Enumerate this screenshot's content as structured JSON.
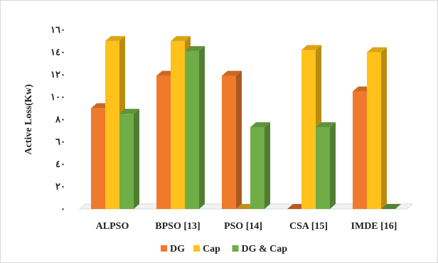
{
  "chart_data": {
    "type": "bar",
    "title": "",
    "xlabel": "",
    "ylabel": "Active Loss(Kw)",
    "ylim": [
      0,
      160
    ],
    "yticks": [
      0,
      20,
      40,
      60,
      80,
      100,
      120,
      140,
      160
    ],
    "ytick_labels": [
      "٠",
      "٢٠",
      "٤٠",
      "٦٠",
      "٨٠",
      "١٠٠",
      "١٢٠",
      "١٤٠",
      "١٦٠"
    ],
    "categories": [
      "ALPSO",
      "BPSO [13]",
      "PSO [14]",
      "CSA [15]",
      "IMDE [16]"
    ],
    "series": [
      {
        "name": "DG",
        "values": [
          90,
          119,
          119,
          0,
          105
        ],
        "color": "#f07a2c"
      },
      {
        "name": "Cap",
        "values": [
          150,
          150,
          0,
          142,
          140
        ],
        "color": "#ffc21a"
      },
      {
        "name": "DG & Cap",
        "values": [
          85,
          141,
          73,
          73,
          0
        ],
        "color": "#70ad47"
      }
    ],
    "grid": false,
    "legend_position": "bottom",
    "style": "3d"
  }
}
